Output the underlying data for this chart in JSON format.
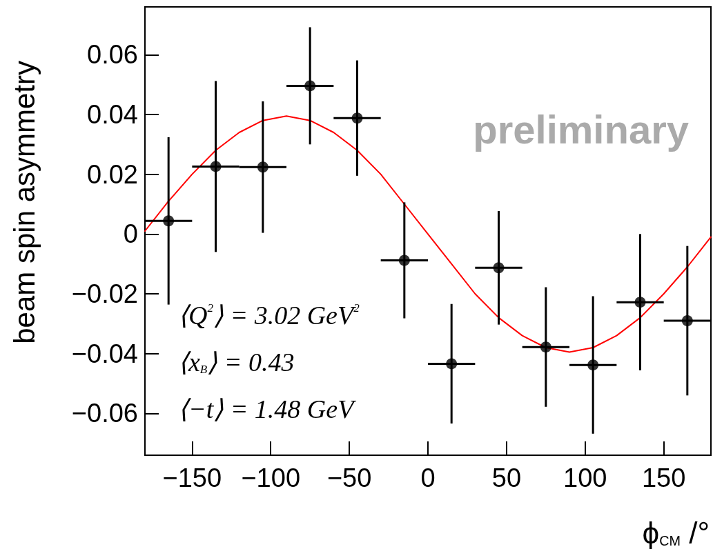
{
  "chart_data": {
    "type": "scatter",
    "xlabel": "ϕ$_{CM}$ /°",
    "ylabel": "beam spin asymmetry",
    "xlim": [
      -180,
      180
    ],
    "xticks": [
      -150,
      -100,
      -50,
      0,
      50,
      100,
      150
    ],
    "ylim": [
      -0.074,
      0.076
    ],
    "yticks": [
      -0.06,
      -0.04,
      -0.02,
      0,
      0.02,
      0.04,
      0.06
    ],
    "marker": "circle",
    "series": [
      {
        "color": "#000000",
        "x": [
          -165,
          -135,
          -105,
          -75,
          -45,
          -15,
          15,
          45,
          75,
          105,
          135,
          165
        ],
        "values": [
          0.0044,
          0.0226,
          0.0224,
          0.0496,
          0.0388,
          -0.0088,
          -0.0434,
          -0.0113,
          -0.0378,
          -0.0438,
          -0.0228,
          -0.029
        ],
        "errors": [
          0.028,
          0.0286,
          0.022,
          0.0196,
          0.0193,
          0.0194,
          0.02,
          0.019,
          0.02,
          0.023,
          0.0228,
          0.025
        ],
        "xerrors": [
          15,
          15,
          15,
          15,
          15,
          15,
          15,
          15,
          15,
          15,
          15,
          15
        ]
      },
      {
        "type": "line",
        "color": "#ff0000",
        "marker": "none",
        "line_style": "solid",
        "x": [
          -180,
          -165,
          -150,
          -135,
          -120,
          -105,
          -90,
          -75,
          -60,
          -45,
          -30,
          -15,
          0,
          15,
          30,
          45,
          60,
          75,
          90,
          105,
          120,
          135,
          150,
          165,
          180
        ],
        "values": [
          0.001,
          0.011,
          0.02,
          0.028,
          0.034,
          0.038,
          0.0395,
          0.038,
          0.034,
          0.028,
          0.02,
          0.01,
          0.0,
          -0.01,
          -0.02,
          -0.028,
          -0.034,
          -0.038,
          -0.0395,
          -0.038,
          -0.034,
          -0.028,
          -0.02,
          -0.011,
          -0.001
        ]
      }
    ],
    "annotations": [
      "⟨Q$^{2}$⟩ = 3.02 GeV$^{2}$",
      "⟨x$_{B}$⟩ = 0.43",
      "⟨−t⟩ = 1.48 GeV",
      "preliminary"
    ]
  }
}
